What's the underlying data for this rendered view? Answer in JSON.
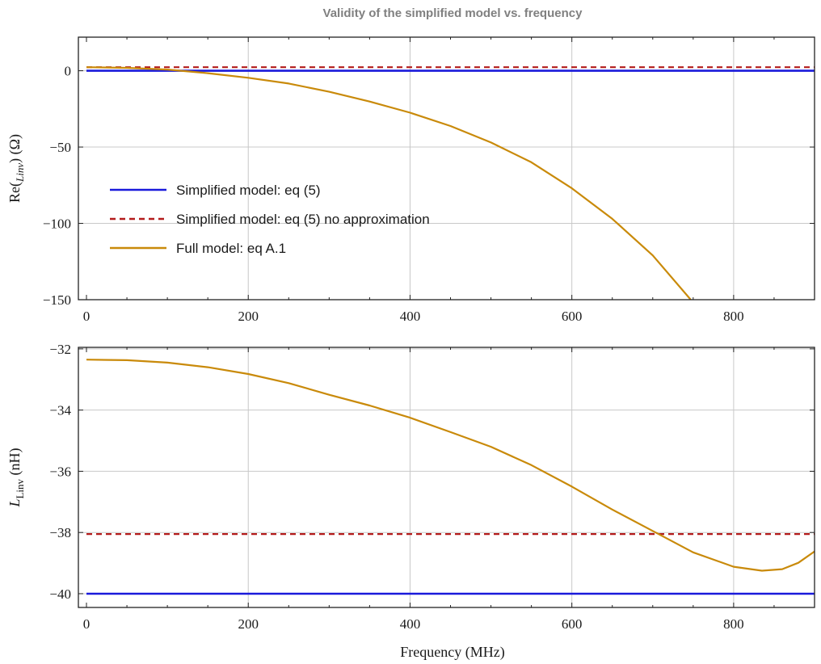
{
  "chart_data": {
    "title": "Validity of the simplified model vs. frequency",
    "xlabel": "Frequency (MHz)",
    "legend": {
      "placement": "left-middle of top panel",
      "entries": [
        {
          "label": "Simplified model: eq (5)",
          "color": "#1a1adb",
          "dash": "solid"
        },
        {
          "label": "Simplified model: eq (5) no approximation",
          "color": "#b31b1b",
          "dash": "dashed"
        },
        {
          "label": "Full model: eq A.1",
          "color": "#c98a0a",
          "dash": "solid"
        }
      ]
    },
    "panels": [
      {
        "type": "line",
        "ylabel": "Re(Z_Linv) (Ω)",
        "ylabel_main": "Re(",
        "ylabel_sub": "Linv",
        "ylabel_rest": ") (Ω)",
        "xlim": [
          -10,
          900
        ],
        "ylim": [
          -150,
          22
        ],
        "xticks": [
          0,
          200,
          400,
          600,
          800
        ],
        "xtick_labels": [
          "0",
          "200",
          "400",
          "600",
          "800"
        ],
        "yticks": [
          0,
          -50,
          -100,
          -150
        ],
        "ytick_labels": [
          "0",
          "−50",
          "−100",
          "−150"
        ],
        "grid": true,
        "series": [
          {
            "name": "Simplified model: eq (5)",
            "x": [
              0,
              900
            ],
            "y": [
              0,
              0
            ]
          },
          {
            "name": "Simplified model: eq (5) no approximation",
            "x": [
              0,
              900
            ],
            "y": [
              2.3,
              2.3
            ]
          },
          {
            "name": "Full model: eq A.1",
            "x": [
              0,
              50,
              100,
              150,
              200,
              250,
              300,
              350,
              400,
              450,
              500,
              550,
              600,
              650,
              700,
              747
            ],
            "y": [
              2.3,
              1.9,
              0.8,
              -1.6,
              -4.6,
              -8.4,
              -13.8,
              -20.2,
              -27.5,
              -36.2,
              -47,
              -60,
              -77,
              -97,
              -121,
              -150
            ]
          }
        ]
      },
      {
        "type": "line",
        "ylabel": "L_Linv (nH)",
        "ylabel_main": "L",
        "ylabel_sub": "Linv",
        "ylabel_rest": " (nH)",
        "xlim": [
          -10,
          900
        ],
        "ylim": [
          -40.45,
          -31.95
        ],
        "xticks": [
          0,
          200,
          400,
          600,
          800
        ],
        "xtick_labels": [
          "0",
          "200",
          "400",
          "600",
          "800"
        ],
        "yticks": [
          -32,
          -34,
          -36,
          -38,
          -40
        ],
        "ytick_labels": [
          "−32",
          "−34",
          "−36",
          "−38",
          "−40"
        ],
        "grid": true,
        "series": [
          {
            "name": "Simplified model: eq (5)",
            "x": [
              0,
              900
            ],
            "y": [
              -40,
              -40
            ]
          },
          {
            "name": "Simplified model: eq (5) no approximation",
            "x": [
              0,
              900
            ],
            "y": [
              -38.05,
              -38.05
            ]
          },
          {
            "name": "Full model: eq A.1",
            "x": [
              0,
              50,
              100,
              150,
              200,
              250,
              300,
              350,
              400,
              450,
              500,
              550,
              600,
              650,
              700,
              750,
              800,
              835,
              860,
              880,
              900
            ],
            "y": [
              -32.35,
              -32.37,
              -32.45,
              -32.6,
              -32.82,
              -33.12,
              -33.5,
              -33.85,
              -34.25,
              -34.72,
              -35.2,
              -35.8,
              -36.5,
              -37.25,
              -37.95,
              -38.65,
              -39.12,
              -39.25,
              -39.2,
              -38.99,
              -38.62
            ]
          }
        ]
      }
    ]
  }
}
